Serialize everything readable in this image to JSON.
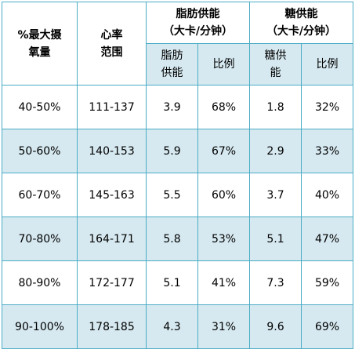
{
  "table": {
    "header": {
      "col1": [
        "%最大摄",
        "氧量"
      ],
      "col2": [
        "心率",
        "范围"
      ],
      "fat": [
        "脂肪供能",
        "（大卡/分钟）"
      ],
      "sugar": [
        "糖供能",
        "（大卡/分钟）"
      ],
      "fat_sub": {
        "supply": [
          "脂肪",
          "供能"
        ],
        "ratio": "比例"
      },
      "sugar_sub": {
        "supply": [
          "糖供",
          "能"
        ],
        "ratio": "比例"
      }
    },
    "rows": [
      {
        "vo2": "40-50%",
        "hr": "111-137",
        "fat": "3.9",
        "fat_ratio": "68%",
        "sugar": "1.8",
        "sugar_ratio": "32%"
      },
      {
        "vo2": "50-60%",
        "hr": "140-153",
        "fat": "5.9",
        "fat_ratio": "67%",
        "sugar": "2.9",
        "sugar_ratio": "33%"
      },
      {
        "vo2": "60-70%",
        "hr": "145-163",
        "fat": "5.5",
        "fat_ratio": "60%",
        "sugar": "3.7",
        "sugar_ratio": "40%"
      },
      {
        "vo2": "70-80%",
        "hr": "164-171",
        "fat": "5.8",
        "fat_ratio": "53%",
        "sugar": "5.1",
        "sugar_ratio": "47%"
      },
      {
        "vo2": "80-90%",
        "hr": "172-177",
        "fat": "5.1",
        "fat_ratio": "41%",
        "sugar": "7.3",
        "sugar_ratio": "59%"
      },
      {
        "vo2": "90-100%",
        "hr": "178-185",
        "fat": "4.3",
        "fat_ratio": "31%",
        "sugar": "9.6",
        "sugar_ratio": "69%"
      }
    ]
  },
  "colors": {
    "border": "#4bacc6",
    "shade": "#d6e9f0",
    "background": "#ffffff"
  }
}
